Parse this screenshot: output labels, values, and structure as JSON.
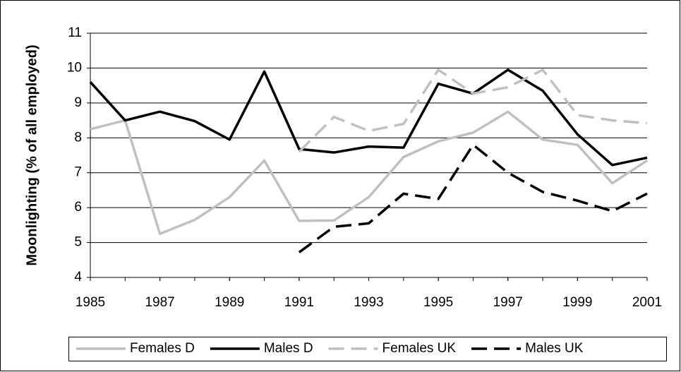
{
  "chart_data": {
    "type": "line",
    "y_label": "Moonlighting (% of all employed)",
    "x": [
      1985,
      1986,
      1987,
      1988,
      1989,
      1990,
      1991,
      1992,
      1993,
      1994,
      1995,
      1996,
      1997,
      1998,
      1999,
      2000,
      2001
    ],
    "xlim": [
      1985,
      2001
    ],
    "xticks": [
      1985,
      1987,
      1989,
      1991,
      1993,
      1995,
      1997,
      1999,
      2001
    ],
    "ylim": [
      4,
      11
    ],
    "yticks": [
      4,
      5,
      6,
      7,
      8,
      9,
      10,
      11
    ],
    "grid": true,
    "legend": "bottom",
    "series": [
      {
        "name": "Females D",
        "color": "#c0c0c0",
        "dash": false,
        "values": [
          8.25,
          8.5,
          5.25,
          5.65,
          6.3,
          7.35,
          5.62,
          5.63,
          6.3,
          7.45,
          7.9,
          8.15,
          8.75,
          7.95,
          7.8,
          6.7,
          7.35
        ]
      },
      {
        "name": "Males D",
        "color": "#000000",
        "dash": false,
        "values": [
          9.6,
          8.5,
          8.75,
          8.48,
          7.95,
          9.9,
          7.68,
          7.58,
          7.75,
          7.72,
          9.55,
          9.27,
          9.95,
          9.35,
          8.1,
          7.22,
          7.43
        ]
      },
      {
        "name": "Females UK",
        "color": "#c0c0c0",
        "dash": true,
        "values": [
          null,
          null,
          null,
          null,
          null,
          null,
          7.6,
          8.6,
          8.2,
          8.4,
          9.95,
          9.27,
          9.45,
          9.95,
          8.65,
          8.5,
          8.42
        ]
      },
      {
        "name": "Males UK",
        "color": "#000000",
        "dash": true,
        "values": [
          null,
          null,
          null,
          null,
          null,
          null,
          4.72,
          5.45,
          5.55,
          6.4,
          6.25,
          7.8,
          7.0,
          6.45,
          6.2,
          5.9,
          6.4
        ]
      }
    ]
  }
}
